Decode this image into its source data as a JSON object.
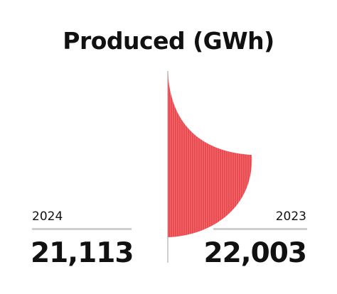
{
  "chart_data": {
    "type": "area",
    "title": "Produced (GWh)",
    "series": [
      {
        "name": "2024",
        "label": "2024",
        "value": 21113,
        "display": "21,113"
      },
      {
        "name": "2023",
        "label": "2023",
        "value": 22003,
        "display": "22,003"
      }
    ],
    "colors": {
      "fill": "#e94b50",
      "stripe": "#f06a6e",
      "axis": "#cfcfcf",
      "text": "#111111"
    }
  }
}
